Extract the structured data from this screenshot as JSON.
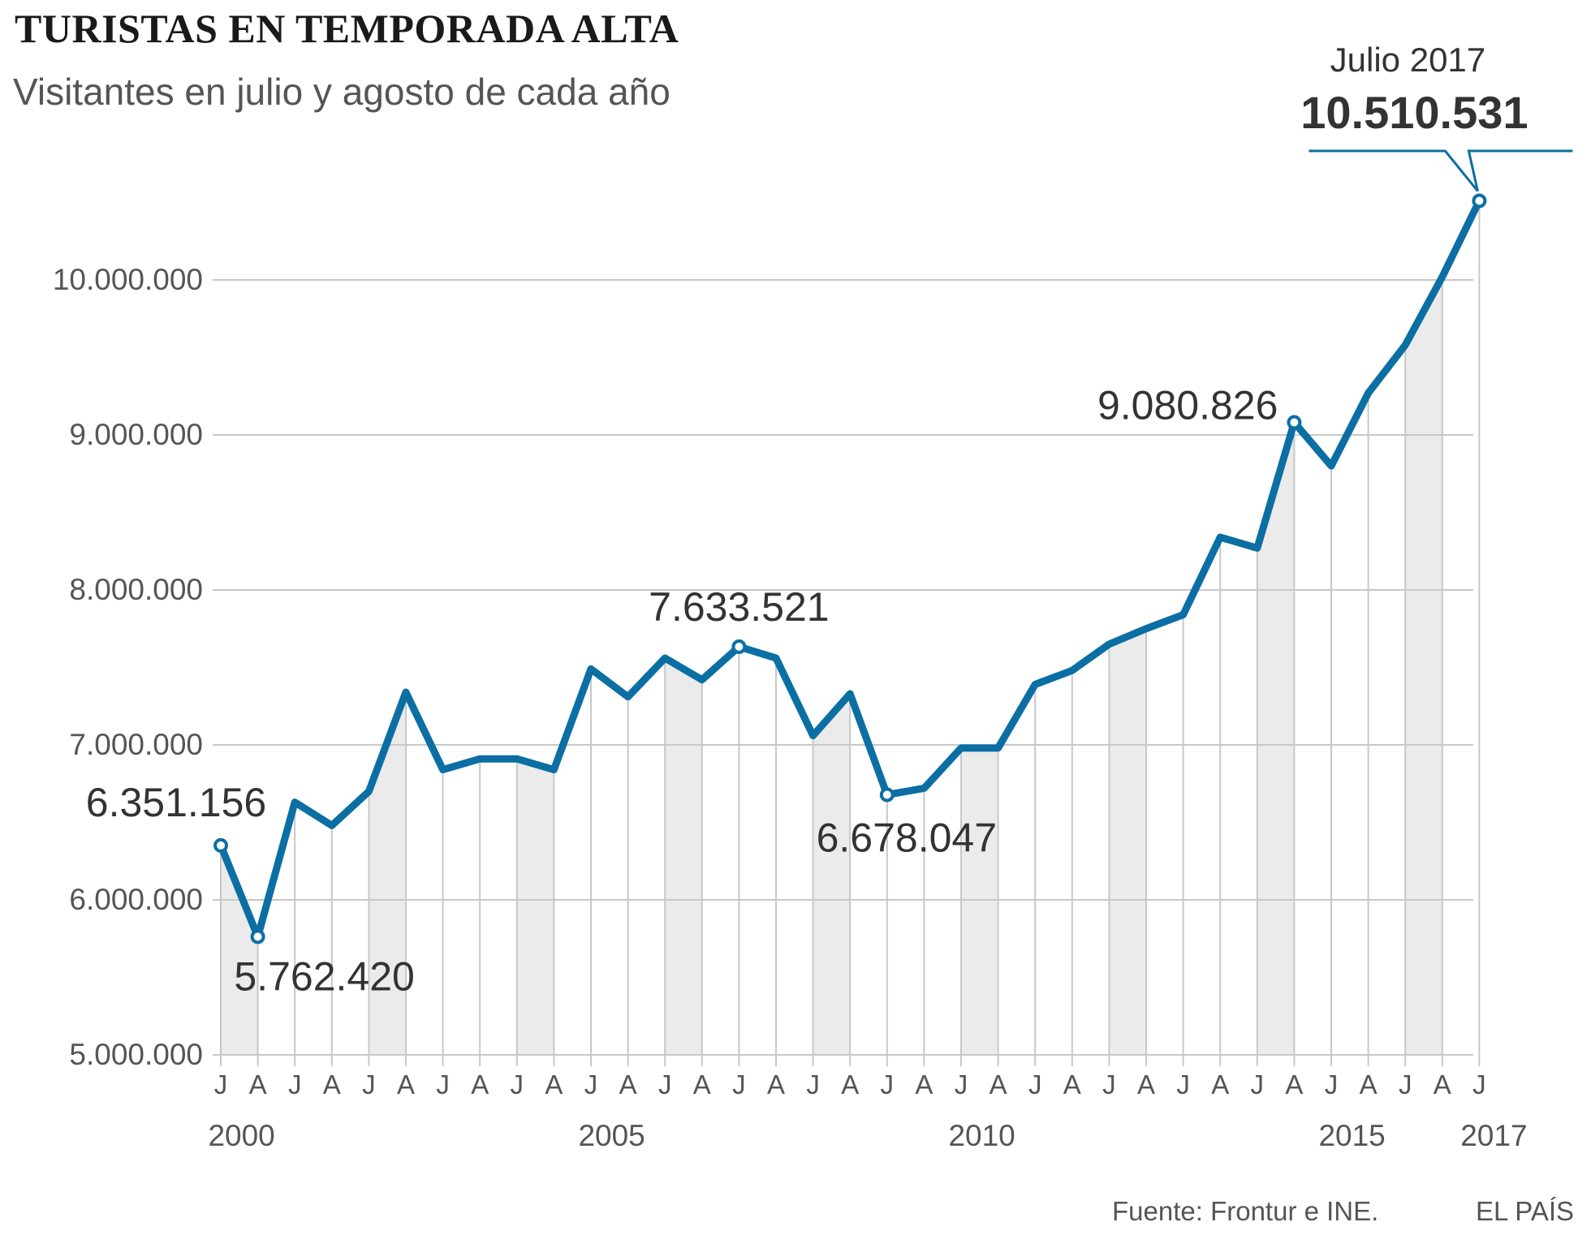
{
  "title": "TURISTAS EN TEMPORADA ALTA",
  "subtitle": "Visitantes en julio y agosto de cada año",
  "source": "Fuente: Frontur e INE.",
  "brand": "EL PAÍS",
  "colors": {
    "line": "#0b6fa4",
    "bar": "#ebebeb",
    "grid": "#c8c8c8"
  },
  "chart_data": {
    "type": "line",
    "categories": [
      "J",
      "A",
      "J",
      "A",
      "J",
      "A",
      "J",
      "A",
      "J",
      "A",
      "J",
      "A",
      "J",
      "A",
      "J",
      "A",
      "J",
      "A",
      "J",
      "A",
      "J",
      "A",
      "J",
      "A",
      "J",
      "A",
      "J",
      "A",
      "J",
      "A",
      "J",
      "A",
      "J",
      "A",
      "J"
    ],
    "years": [
      {
        "label": "2000",
        "index": 1
      },
      {
        "label": "2005",
        "index": 11
      },
      {
        "label": "2010",
        "index": 21
      },
      {
        "label": "2015",
        "index": 31
      },
      {
        "label": "2017",
        "index": 34
      }
    ],
    "values": [
      6351156,
      5762420,
      6630000,
      6480000,
      6700000,
      7340000,
      6840000,
      6910000,
      6910000,
      6840000,
      7490000,
      7310000,
      7560000,
      7420000,
      7633521,
      7560000,
      7060000,
      7330000,
      6678047,
      6720000,
      6980000,
      6980000,
      7390000,
      7480000,
      7650000,
      7750000,
      7840000,
      8340000,
      8270000,
      9080826,
      8800000,
      9270000,
      9580000,
      10020000,
      10510531
    ],
    "ylim": [
      5000000,
      10510531
    ],
    "yticks": [
      {
        "value": 5000000,
        "label": "5.000.000"
      },
      {
        "value": 6000000,
        "label": "6.000.000"
      },
      {
        "value": 7000000,
        "label": "7.000.000"
      },
      {
        "value": 8000000,
        "label": "8.000.000"
      },
      {
        "value": 9000000,
        "label": "9.000.000"
      },
      {
        "value": 10000000,
        "label": "10.000.000"
      }
    ],
    "grid": true,
    "annotations": [
      {
        "index": 0,
        "label": "6.351.156",
        "anchor": "above"
      },
      {
        "index": 1,
        "label": "5.762.420",
        "anchor": "below"
      },
      {
        "index": 14,
        "label": "7.633.521",
        "anchor": "above"
      },
      {
        "index": 18,
        "label": "6.678.047",
        "anchor": "below"
      },
      {
        "index": 29,
        "label": "9.080.826",
        "anchor": "left"
      }
    ],
    "highlight": {
      "index": 34,
      "period": "Julio 2017",
      "value": "10.510.531"
    }
  }
}
